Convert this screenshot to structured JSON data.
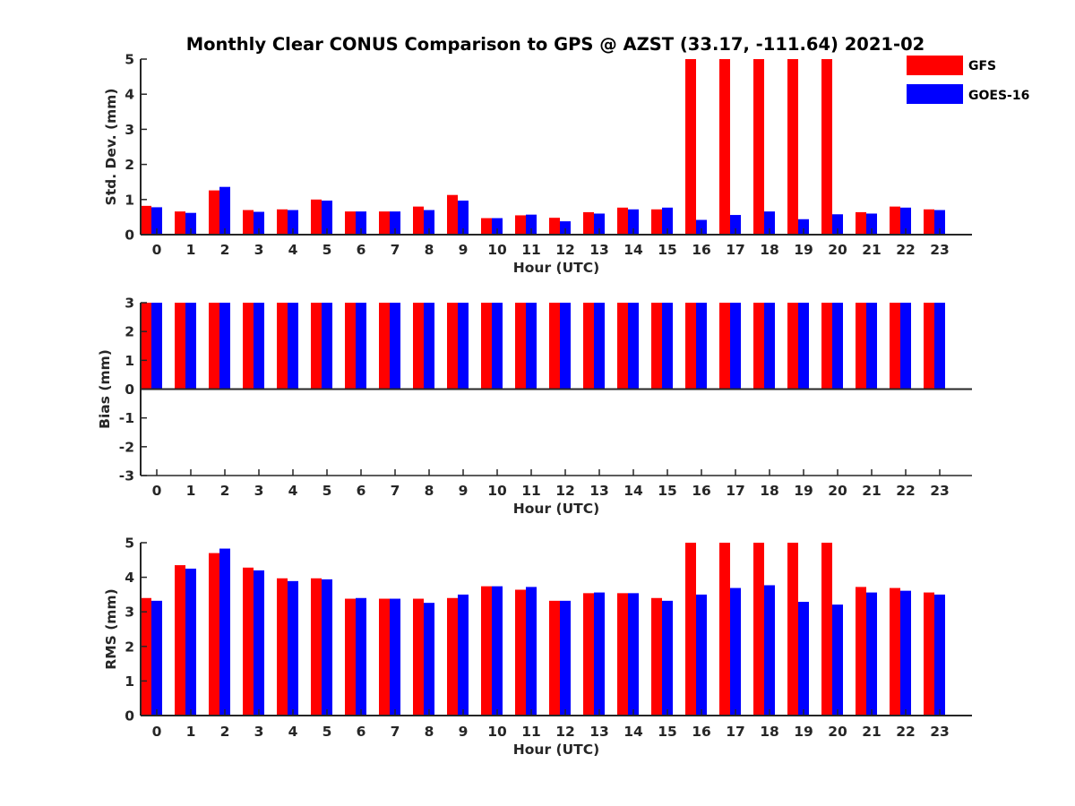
{
  "colors": {
    "gfs": "#ff0000",
    "goes16": "#0000ff",
    "axis": "#262626"
  },
  "chart_data": {
    "title": "Monthly Clear CONUS Comparison to GPS @ AZST (33.17, -111.64) 2021-02",
    "type": "bar",
    "legend": {
      "placement": "top-right",
      "entries": [
        {
          "label": "GFS",
          "color": "#ff0000"
        },
        {
          "label": "GOES-16",
          "color": "#0000ff"
        }
      ]
    },
    "panels": [
      {
        "id": "stddev",
        "ylabel": "Std. Dev. (mm)",
        "xlabel": "Hour (UTC)",
        "ylim": [
          0,
          5
        ],
        "yticks": [
          "0",
          "1",
          "2",
          "3",
          "4",
          "5"
        ],
        "categories": [
          "0",
          "1",
          "2",
          "3",
          "4",
          "5",
          "6",
          "7",
          "8",
          "9",
          "10",
          "11",
          "12",
          "13",
          "14",
          "15",
          "16",
          "17",
          "18",
          "19",
          "20",
          "21",
          "22",
          "23"
        ],
        "series": [
          {
            "name": "GFS",
            "values": [
              0.82,
              0.66,
              1.26,
              0.7,
              0.72,
              1.0,
              0.66,
              0.66,
              0.8,
              1.13,
              0.47,
              0.55,
              0.48,
              0.64,
              0.77,
              0.72,
              5,
              5,
              5,
              5,
              5,
              0.64,
              0.8,
              0.72
            ]
          },
          {
            "name": "GOES-16",
            "values": [
              0.78,
              0.62,
              1.36,
              0.65,
              0.7,
              0.97,
              0.66,
              0.66,
              0.7,
              0.97,
              0.47,
              0.57,
              0.38,
              0.6,
              0.72,
              0.77,
              0.42,
              0.56,
              0.66,
              0.44,
              0.58,
              0.6,
              0.77,
              0.7
            ]
          }
        ]
      },
      {
        "id": "bias",
        "ylabel": "Bias (mm)",
        "xlabel": "Hour (UTC)",
        "ylim": [
          -3,
          3
        ],
        "yticks": [
          "-3",
          "-2",
          "-1",
          "0",
          "1",
          "2",
          "3"
        ],
        "categories": [
          "0",
          "1",
          "2",
          "3",
          "4",
          "5",
          "6",
          "7",
          "8",
          "9",
          "10",
          "11",
          "12",
          "13",
          "14",
          "15",
          "16",
          "17",
          "18",
          "19",
          "20",
          "21",
          "22",
          "23"
        ],
        "series": [
          {
            "name": "GFS",
            "values": [
              3,
              3,
              3,
              3,
              3,
              3,
              3,
              3,
              3,
              3,
              3,
              3,
              3,
              3,
              3,
              3,
              3,
              3,
              3,
              3,
              3,
              3,
              3,
              3
            ]
          },
          {
            "name": "GOES-16",
            "values": [
              3,
              3,
              3,
              3,
              3,
              3,
              3,
              3,
              3,
              3,
              3,
              3,
              3,
              3,
              3,
              3,
              3,
              3,
              3,
              3,
              3,
              3,
              3,
              3
            ]
          }
        ]
      },
      {
        "id": "rms",
        "ylabel": "RMS (mm)",
        "xlabel": "Hour (UTC)",
        "ylim": [
          0,
          5
        ],
        "yticks": [
          "0",
          "1",
          "2",
          "3",
          "4",
          "5"
        ],
        "categories": [
          "0",
          "1",
          "2",
          "3",
          "4",
          "5",
          "6",
          "7",
          "8",
          "9",
          "10",
          "11",
          "12",
          "13",
          "14",
          "15",
          "16",
          "17",
          "18",
          "19",
          "20",
          "21",
          "22",
          "23"
        ],
        "series": [
          {
            "name": "GFS",
            "values": [
              3.4,
              4.35,
              4.7,
              4.28,
              3.97,
              3.97,
              3.38,
              3.38,
              3.38,
              3.4,
              3.74,
              3.64,
              3.32,
              3.54,
              3.54,
              3.4,
              5,
              5,
              5,
              5,
              5,
              3.72,
              3.69,
              3.56
            ]
          },
          {
            "name": "GOES-16",
            "values": [
              3.32,
              4.25,
              4.83,
              4.2,
              3.89,
              3.94,
              3.4,
              3.38,
              3.26,
              3.5,
              3.74,
              3.72,
              3.32,
              3.56,
              3.54,
              3.32,
              3.5,
              3.69,
              3.77,
              3.29,
              3.21,
              3.56,
              3.61,
              3.5
            ]
          }
        ]
      }
    ]
  }
}
